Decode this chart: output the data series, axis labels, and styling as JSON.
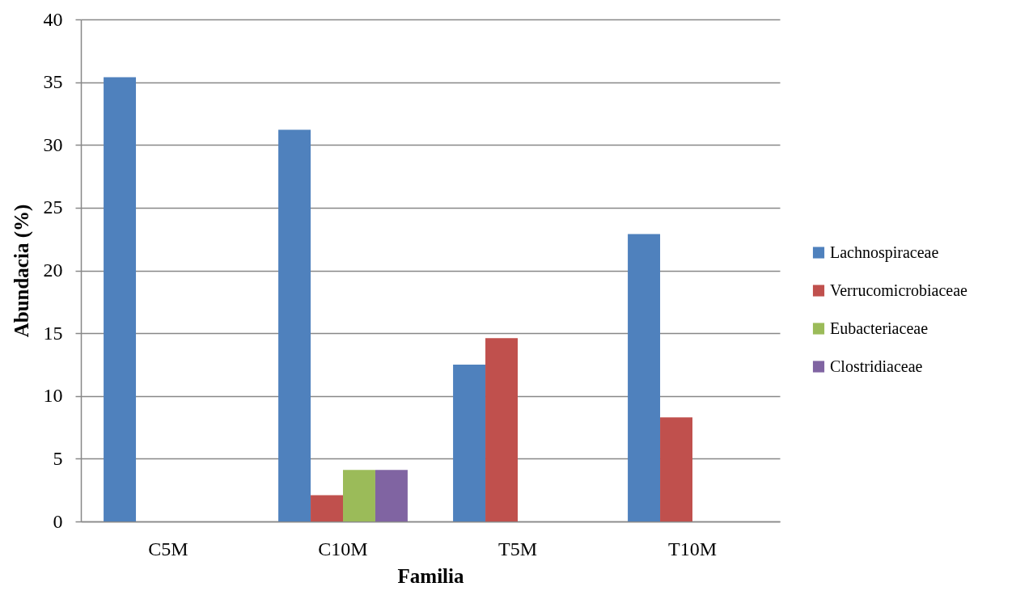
{
  "chart_data": {
    "type": "bar",
    "xlabel": "Familia",
    "ylabel": "Abundacia (%)",
    "categories": [
      "C5M",
      "C10M",
      "T5M",
      "T10M"
    ],
    "series": [
      {
        "name": "Lachnospiraceae",
        "color": "#4f81bd",
        "values": [
          35.4,
          31.2,
          12.5,
          22.9
        ]
      },
      {
        "name": "Verrucomicrobiaceae",
        "color": "#c0504d",
        "values": [
          null,
          2.1,
          14.6,
          8.3
        ]
      },
      {
        "name": "Eubacteriaceae",
        "color": "#9bbb59",
        "values": [
          null,
          4.1,
          null,
          null
        ]
      },
      {
        "name": "Clostridiaceae",
        "color": "#8064a2",
        "values": [
          null,
          4.1,
          null,
          null
        ]
      }
    ],
    "ylim": [
      0,
      40
    ],
    "yticks": [
      0,
      5,
      10,
      15,
      20,
      25,
      30,
      35,
      40
    ],
    "grid": "y",
    "legend": "right"
  }
}
